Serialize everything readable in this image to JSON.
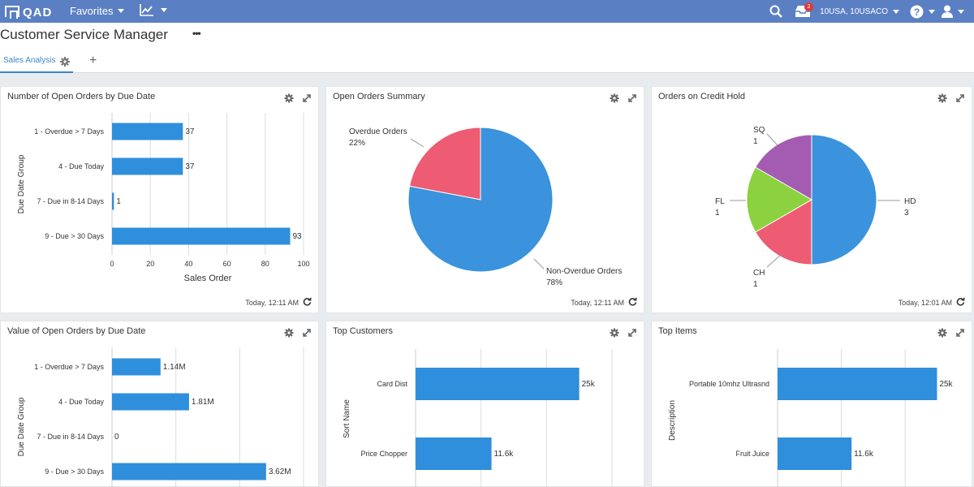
{
  "app": {
    "logo": "QAD",
    "favorites_label": "Favorites",
    "domain": "10USA, 10USACO",
    "notification_count": "2"
  },
  "page": {
    "title": "Customer Service Manager",
    "more_label": "•••",
    "tabs": [
      {
        "label": "Sales Analysis"
      }
    ],
    "add_tab_label": "+"
  },
  "widgets": {
    "open_orders_due": {
      "title": "Number of Open Orders by Due Date",
      "timestamp": "Today, 12:11 AM",
      "chart_data": {
        "type": "bar",
        "orientation": "horizontal",
        "categories": [
          "1 - Overdue > 7 Days",
          "4 - Due Today",
          "7 - Due in 8-14 Days",
          "9 - Due > 30 Days"
        ],
        "values": [
          37,
          37,
          1,
          93
        ],
        "value_labels": [
          "37",
          "37",
          "1",
          "93"
        ],
        "xlabel": "Sales Order",
        "ylabel": "Due Date Group",
        "xlim": [
          0,
          100
        ],
        "xticks": [
          "0",
          "20",
          "40",
          "60",
          "80",
          "100"
        ],
        "color": "#2f8fdc"
      }
    },
    "open_orders_summary": {
      "title": "Open Orders Summary",
      "timestamp": "Today, 12:11 AM",
      "chart_data": {
        "type": "pie",
        "slices": [
          {
            "name": "Overdue Orders",
            "value": 22,
            "label": "22%",
            "color": "#ed5c72"
          },
          {
            "name": "Non-Overdue Orders",
            "value": 78,
            "label": "78%",
            "color": "#3a93dc"
          }
        ]
      }
    },
    "credit_hold": {
      "title": "Orders on Credit Hold",
      "timestamp": "Today, 12:01 AM",
      "chart_data": {
        "type": "pie",
        "slices": [
          {
            "name": "HD",
            "value": 3,
            "label": "3",
            "color": "#3a93dc"
          },
          {
            "name": "CH",
            "value": 1,
            "label": "1",
            "color": "#ed5c72"
          },
          {
            "name": "FL",
            "value": 1,
            "label": "1",
            "color": "#8cd13f"
          },
          {
            "name": "SQ",
            "value": 1,
            "label": "1",
            "color": "#a45cb3"
          }
        ]
      }
    },
    "value_open_orders": {
      "title": "Value of Open Orders by Due Date",
      "chart_data": {
        "type": "bar",
        "orientation": "horizontal",
        "categories": [
          "1 - Overdue > 7 Days",
          "4 - Due Today",
          "7 - Due in 8-14 Days",
          "9 - Due > 30 Days"
        ],
        "values": [
          1.14,
          1.81,
          0,
          3.62
        ],
        "value_labels": [
          "1.14M",
          "1.81M",
          "0",
          "3.62M"
        ],
        "ylabel": "Due Date Group",
        "unit": "M",
        "color": "#2f8fdc"
      }
    },
    "top_customers": {
      "title": "Top Customers",
      "chart_data": {
        "type": "bar",
        "orientation": "horizontal",
        "categories": [
          "Card Dist",
          "Price Chopper"
        ],
        "values": [
          25,
          11.6
        ],
        "value_labels": [
          "25k",
          "11.6k"
        ],
        "ylabel": "Sort Name",
        "color": "#2f8fdc"
      }
    },
    "top_items": {
      "title": "Top Items",
      "chart_data": {
        "type": "bar",
        "orientation": "horizontal",
        "categories": [
          "Portable 10mhz Ultrasnd",
          "Fruit Juice"
        ],
        "values": [
          25,
          11.6
        ],
        "value_labels": [
          "25k",
          "11.6k"
        ],
        "ylabel": "Description",
        "color": "#2f8fdc"
      }
    }
  }
}
